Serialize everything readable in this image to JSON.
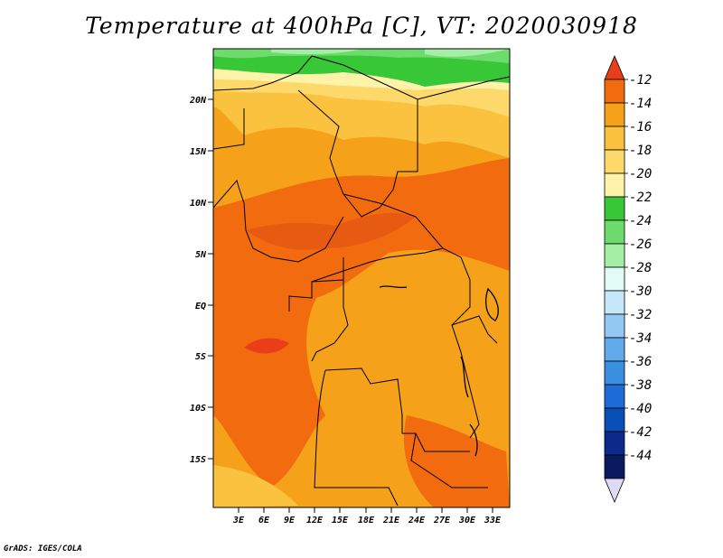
{
  "title": "Temperature at 400hPa [C], VT: 2020030918",
  "credit": "GrADS: IGES/COLA",
  "map": {
    "lat_labels": [
      "20N",
      "15N",
      "10N",
      "5N",
      "EQ",
      "5S",
      "10S",
      "15S"
    ],
    "lon_labels": [
      "3E",
      "6E",
      "9E",
      "12E",
      "15E",
      "18E",
      "21E",
      "24E",
      "27E",
      "30E",
      "33E"
    ]
  },
  "legend": {
    "labels": [
      "-12",
      "-14",
      "-16",
      "-18",
      "-20",
      "-22",
      "-24",
      "-26",
      "-28",
      "-30",
      "-32",
      "-34",
      "-36",
      "-38",
      "-40",
      "-42",
      "-44"
    ],
    "colors": [
      "#e83f1a",
      "#f26b0f",
      "#f5a11a",
      "#fac23e",
      "#fcd96a",
      "#fef3a9",
      "#37c737",
      "#6ddb6d",
      "#a5eea5",
      "#e3fbf5",
      "#c6e6f9",
      "#93c8f2",
      "#62aaec",
      "#3a8fe0",
      "#1e6cd7",
      "#0a4fb5",
      "#0b2a8a",
      "#0a1a5e",
      "#dedbf5"
    ]
  },
  "chart_data": {
    "type": "heatmap",
    "title": "Temperature at 400hPa [C], VT: 2020030918",
    "variable": "Temperature",
    "level": "400hPa",
    "units": "C",
    "valid_time": "2020030918",
    "x_ticks": [
      "3E",
      "6E",
      "9E",
      "12E",
      "15E",
      "18E",
      "21E",
      "24E",
      "27E",
      "30E",
      "33E"
    ],
    "y_ticks": [
      "20N",
      "15N",
      "10N",
      "5N",
      "EQ",
      "5S",
      "10S",
      "15S"
    ],
    "colorbar_levels": [
      -12,
      -14,
      -16,
      -18,
      -20,
      -22,
      -24,
      -26,
      -28,
      -30,
      -32,
      -34,
      -36,
      -38,
      -40,
      -42,
      -44
    ]
  }
}
